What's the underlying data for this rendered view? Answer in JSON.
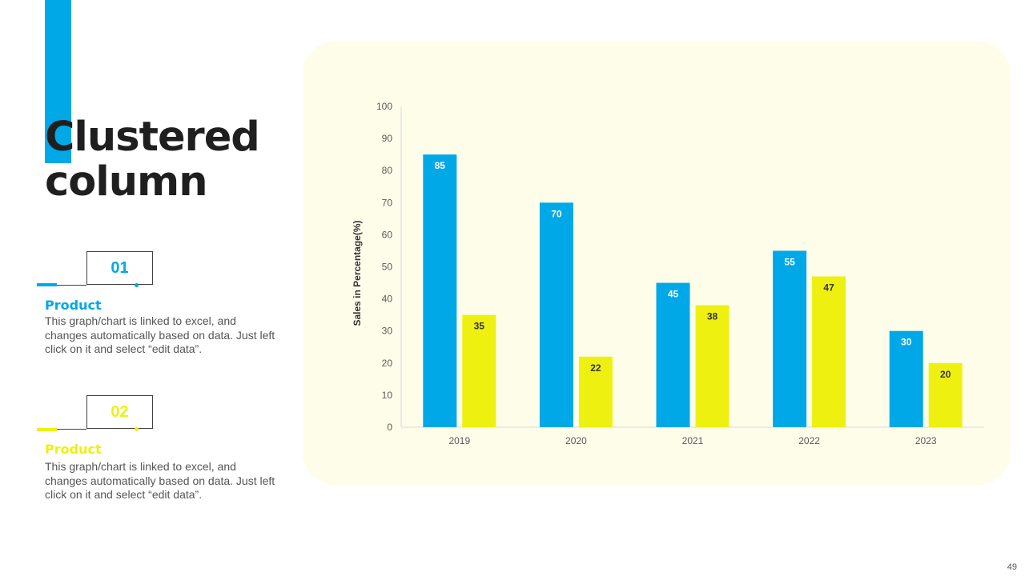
{
  "slide": {
    "title_line1": "Clustered",
    "title_line2": "column",
    "page_number": "49"
  },
  "items": [
    {
      "number": "01",
      "heading": "Product",
      "description": "This graph/chart is linked to excel, and changes automatically based on data. Just left click on it and select “edit data”.",
      "color": "#00a8e8"
    },
    {
      "number": "02",
      "heading": "Product",
      "description": "This graph/chart is linked to excel, and changes automatically based on data. Just left click on it and select “edit data”.",
      "color": "#eef010"
    }
  ],
  "colors": {
    "accent_blue": "#00a8e8",
    "accent_yellow": "#eef010",
    "panel_background": "#fdfdea",
    "title_text": "#1f1f1f"
  },
  "chart_data": {
    "type": "bar",
    "title": "",
    "xlabel": "",
    "ylabel": "Sales in Percentage(%)",
    "categories": [
      "2019",
      "2020",
      "2021",
      "2022",
      "2023"
    ],
    "series": [
      {
        "values": [
          85,
          70,
          45,
          55,
          30
        ],
        "color": "#00a8e8",
        "label_color": "#ffffff"
      },
      {
        "values": [
          35,
          22,
          38,
          47,
          20
        ],
        "color": "#eef010",
        "label_color": "#333333"
      }
    ],
    "ylim": [
      0,
      100
    ],
    "yticks": [
      0,
      10,
      20,
      30,
      40,
      50,
      60,
      70,
      80,
      90,
      100
    ],
    "grid": false,
    "legend": "none",
    "data_labels": true
  }
}
